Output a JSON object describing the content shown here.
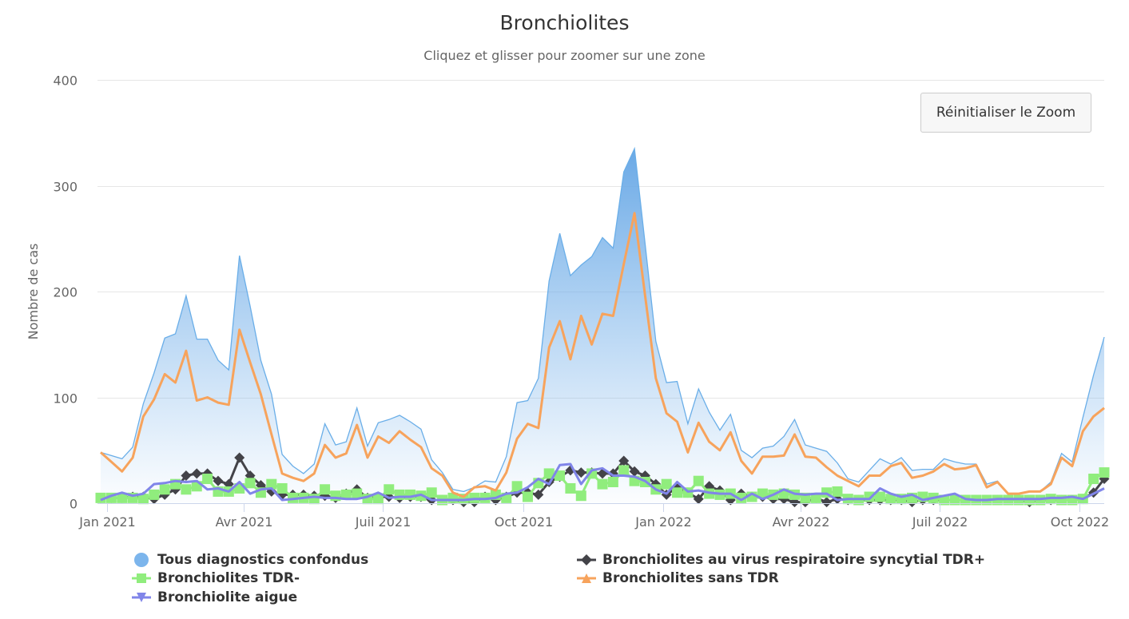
{
  "title": "Bronchiolites",
  "subtitle": "Cliquez et glisser pour zoomer sur une zone",
  "reset_zoom_label": "Réinitialiser le Zoom",
  "chart_data": {
    "type": "line",
    "title": "Bronchiolites",
    "subtitle": "Cliquez et glisser pour zoomer sur une zone",
    "xlabel": "",
    "ylabel": "Nombre de cas",
    "ylim": [
      0,
      400
    ],
    "y_ticks": [
      "0",
      "100",
      "200",
      "300",
      "400"
    ],
    "x_ticks": [
      {
        "label": "Jan 2021",
        "date": "2021-01-01"
      },
      {
        "label": "Avr 2021",
        "date": "2021-04-01"
      },
      {
        "label": "Juil 2021",
        "date": "2021-07-01"
      },
      {
        "label": "Oct 2021",
        "date": "2021-10-01"
      },
      {
        "label": "Jan 2022",
        "date": "2022-01-01"
      },
      {
        "label": "Avr 2022",
        "date": "2022-04-01"
      },
      {
        "label": "Juil 2022",
        "date": "2022-07-01"
      },
      {
        "label": "Oct 2022",
        "date": "2022-10-01"
      }
    ],
    "grid": true,
    "legend_placement": "bottom",
    "x": [
      "2020-12-28",
      "2021-01-04",
      "2021-01-11",
      "2021-01-18",
      "2021-01-25",
      "2021-02-01",
      "2021-02-08",
      "2021-02-15",
      "2021-02-22",
      "2021-03-01",
      "2021-03-08",
      "2021-03-15",
      "2021-03-22",
      "2021-03-29",
      "2021-04-05",
      "2021-04-12",
      "2021-04-19",
      "2021-04-26",
      "2021-05-03",
      "2021-05-10",
      "2021-05-17",
      "2021-05-24",
      "2021-05-31",
      "2021-06-07",
      "2021-06-14",
      "2021-06-21",
      "2021-06-28",
      "2021-07-05",
      "2021-07-12",
      "2021-07-19",
      "2021-07-26",
      "2021-08-02",
      "2021-08-09",
      "2021-08-16",
      "2021-08-23",
      "2021-08-30",
      "2021-09-06",
      "2021-09-13",
      "2021-09-20",
      "2021-09-27",
      "2021-10-04",
      "2021-10-11",
      "2021-10-18",
      "2021-10-25",
      "2021-11-01",
      "2021-11-08",
      "2021-11-15",
      "2021-11-22",
      "2021-11-29",
      "2021-12-06",
      "2021-12-13",
      "2021-12-20",
      "2021-12-27",
      "2022-01-03",
      "2022-01-10",
      "2022-01-17",
      "2022-01-24",
      "2022-01-31",
      "2022-02-07",
      "2022-02-14",
      "2022-02-21",
      "2022-02-28",
      "2022-03-07",
      "2022-03-14",
      "2022-03-21",
      "2022-03-28",
      "2022-04-04",
      "2022-04-11",
      "2022-04-18",
      "2022-04-25",
      "2022-05-02",
      "2022-05-09",
      "2022-05-16",
      "2022-05-23",
      "2022-05-30",
      "2022-06-06",
      "2022-06-13",
      "2022-06-20",
      "2022-06-27",
      "2022-07-04",
      "2022-07-11",
      "2022-07-18",
      "2022-07-25",
      "2022-08-01",
      "2022-08-08",
      "2022-08-15",
      "2022-08-22",
      "2022-08-29",
      "2022-09-05",
      "2022-09-12",
      "2022-09-19",
      "2022-09-26",
      "2022-10-03",
      "2022-10-10",
      "2022-10-17"
    ],
    "series": [
      {
        "name": "Tous diagnostics confondus",
        "type": "area",
        "color": "#7cb5ec",
        "marker": "circle",
        "show_markers": false,
        "values": [
          48,
          45,
          42,
          53,
          94,
          123,
          156,
          160,
          196,
          155,
          155,
          135,
          126,
          234,
          186,
          135,
          103,
          46,
          35,
          28,
          37,
          75,
          55,
          58,
          90,
          54,
          76,
          79,
          83,
          77,
          70,
          41,
          29,
          13,
          11,
          15,
          21,
          20,
          44,
          95,
          97,
          118,
          210,
          255,
          215,
          225,
          233,
          251,
          241,
          313,
          335,
          245,
          153,
          114,
          115,
          75,
          108,
          86,
          69,
          84,
          50,
          43,
          52,
          54,
          63,
          79,
          55,
          52,
          49,
          38,
          23,
          20,
          31,
          42,
          37,
          43,
          31,
          32,
          32,
          42,
          39,
          37,
          37,
          18,
          21,
          9,
          9,
          11,
          11,
          20,
          47,
          39,
          81,
          121,
          157
        ]
      },
      {
        "name": "Bronchiolites au virus respiratoire syncytial TDR+",
        "type": "line",
        "color": "#434348",
        "marker": "diamond",
        "show_markers": true,
        "values": [
          5,
          5,
          5,
          6,
          6,
          4,
          8,
          13,
          26,
          28,
          28,
          21,
          18,
          43,
          26,
          17,
          11,
          8,
          8,
          8,
          7,
          7,
          5,
          9,
          13,
          5,
          6,
          6,
          5,
          6,
          6,
          3,
          3,
          3,
          1,
          1,
          6,
          3,
          6,
          10,
          10,
          8,
          20,
          25,
          31,
          29,
          29,
          28,
          28,
          40,
          30,
          26,
          18,
          8,
          15,
          10,
          4,
          16,
          12,
          3,
          9,
          6,
          6,
          4,
          4,
          1,
          1,
          5,
          1,
          4,
          3,
          3,
          3,
          3,
          3,
          3,
          1,
          3,
          3,
          3,
          3,
          3,
          3,
          3,
          3,
          3,
          3,
          1,
          3,
          3,
          3,
          3,
          4,
          10,
          23
        ]
      },
      {
        "name": "Bronchiolites TDR-",
        "type": "line",
        "color": "#90ed7d",
        "marker": "square",
        "show_markers": true,
        "values": [
          5,
          5,
          5,
          5,
          4,
          8,
          13,
          18,
          13,
          16,
          23,
          11,
          11,
          14,
          19,
          10,
          18,
          14,
          5,
          5,
          4,
          13,
          7,
          8,
          9,
          4,
          4,
          13,
          8,
          8,
          7,
          10,
          3,
          5,
          4,
          5,
          5,
          8,
          5,
          16,
          6,
          19,
          28,
          26,
          14,
          7,
          28,
          18,
          20,
          31,
          21,
          20,
          13,
          18,
          10,
          10,
          21,
          9,
          8,
          9,
          5,
          6,
          9,
          8,
          9,
          8,
          5,
          5,
          10,
          11,
          4,
          3,
          6,
          6,
          4,
          4,
          5,
          6,
          5,
          3,
          3,
          3,
          3,
          3,
          3,
          3,
          3,
          3,
          3,
          4,
          3,
          3,
          4,
          23,
          29
        ]
      },
      {
        "name": "Bronchiolites sans TDR",
        "type": "line",
        "color": "#f7a35c",
        "marker": "triangle",
        "show_markers": false,
        "values": [
          48,
          39,
          30,
          43,
          82,
          98,
          122,
          114,
          144,
          97,
          100,
          95,
          93,
          164,
          133,
          103,
          65,
          28,
          24,
          21,
          28,
          55,
          43,
          47,
          74,
          43,
          63,
          57,
          68,
          60,
          53,
          33,
          26,
          10,
          6,
          15,
          16,
          12,
          29,
          61,
          75,
          71,
          147,
          172,
          136,
          177,
          150,
          179,
          177,
          226,
          274,
          196,
          118,
          85,
          77,
          48,
          76,
          58,
          50,
          67,
          40,
          28,
          44,
          44,
          45,
          65,
          44,
          43,
          34,
          26,
          21,
          16,
          26,
          26,
          35,
          38,
          24,
          26,
          30,
          37,
          32,
          33,
          36,
          15,
          20,
          9,
          9,
          11,
          11,
          18,
          43,
          35,
          68,
          82,
          90
        ]
      },
      {
        "name": "Bronchiolite aigue",
        "type": "line",
        "color": "#8085e9",
        "marker": "triangle-down",
        "show_markers": false,
        "values": [
          3,
          7,
          10,
          7,
          9,
          18,
          19,
          21,
          20,
          21,
          13,
          14,
          11,
          20,
          9,
          13,
          14,
          3,
          4,
          5,
          6,
          5,
          5,
          4,
          4,
          6,
          10,
          5,
          6,
          6,
          8,
          3,
          3,
          3,
          3,
          4,
          4,
          5,
          9,
          10,
          15,
          23,
          18,
          36,
          37,
          18,
          31,
          33,
          26,
          26,
          25,
          21,
          13,
          9,
          20,
          11,
          12,
          10,
          9,
          9,
          3,
          9,
          4,
          8,
          13,
          9,
          8,
          9,
          9,
          3,
          4,
          4,
          4,
          14,
          9,
          6,
          8,
          3,
          5,
          7,
          9,
          4,
          3,
          3,
          4,
          4,
          4,
          4,
          4,
          5,
          5,
          6,
          4,
          9,
          14
        ]
      }
    ]
  }
}
